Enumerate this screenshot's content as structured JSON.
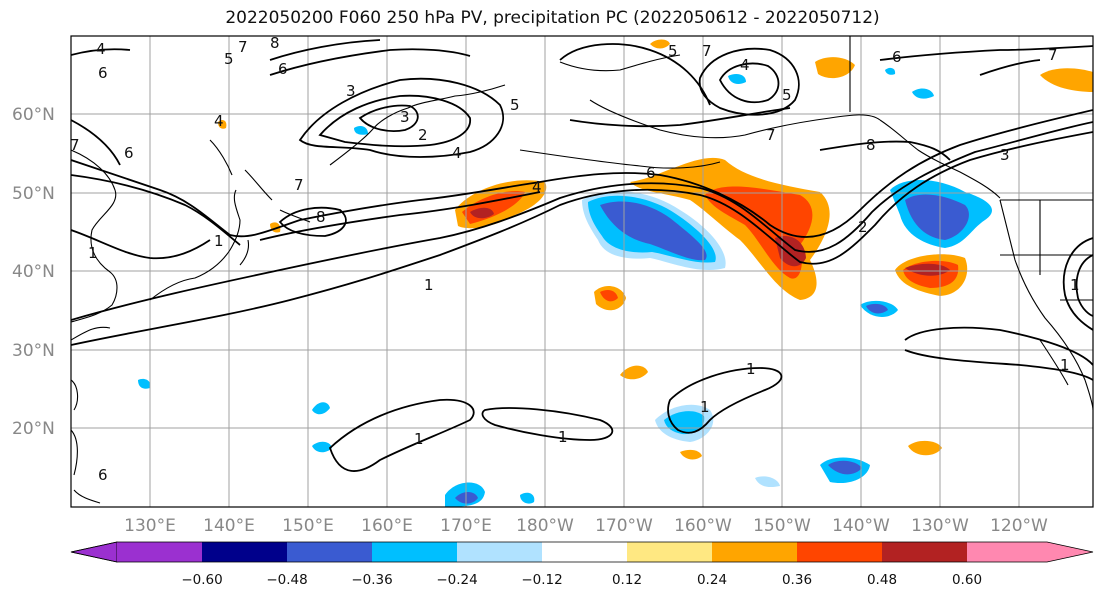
{
  "title": "2022050200 F060 250 hPa PV, precipitation PC (2022050612 - 2022050712)",
  "lat_labels": [
    "60°N",
    "50°N",
    "40°N",
    "30°N",
    "20°N"
  ],
  "lon_labels": [
    "130°E",
    "140°E",
    "150°E",
    "160°E",
    "170°E",
    "180°W",
    "170°W",
    "160°W",
    "150°W",
    "140°W",
    "130°W",
    "120°W"
  ],
  "colorbar": {
    "ticks": [
      "−0.60",
      "−0.48",
      "−0.36",
      "−0.24",
      "−0.12",
      "0.12",
      "0.24",
      "0.36",
      "0.48",
      "0.60"
    ],
    "colors": [
      "#9b30d0",
      "#00008b",
      "#3a5bd1",
      "#00bfff",
      "#b0e2ff",
      "#ffffff",
      "#ffe882",
      "#ffa500",
      "#ff4500",
      "#b22222",
      "#ff88b0"
    ]
  },
  "contour_labels": [
    "4",
    "6",
    "7",
    "8",
    "5",
    "6",
    "7",
    "1",
    "3",
    "2",
    "4",
    "5",
    "7",
    "6",
    "8",
    "4",
    "5",
    "7",
    "7",
    "6",
    "8",
    "1",
    "2",
    "3",
    "4",
    "5",
    "6",
    "7",
    "1",
    "1",
    "1",
    "1",
    "1",
    "1",
    "1",
    "4",
    "6",
    "3"
  ],
  "colors": {
    "frame": "#000000",
    "grid": "#a0a0a0",
    "coast": "#000000"
  }
}
